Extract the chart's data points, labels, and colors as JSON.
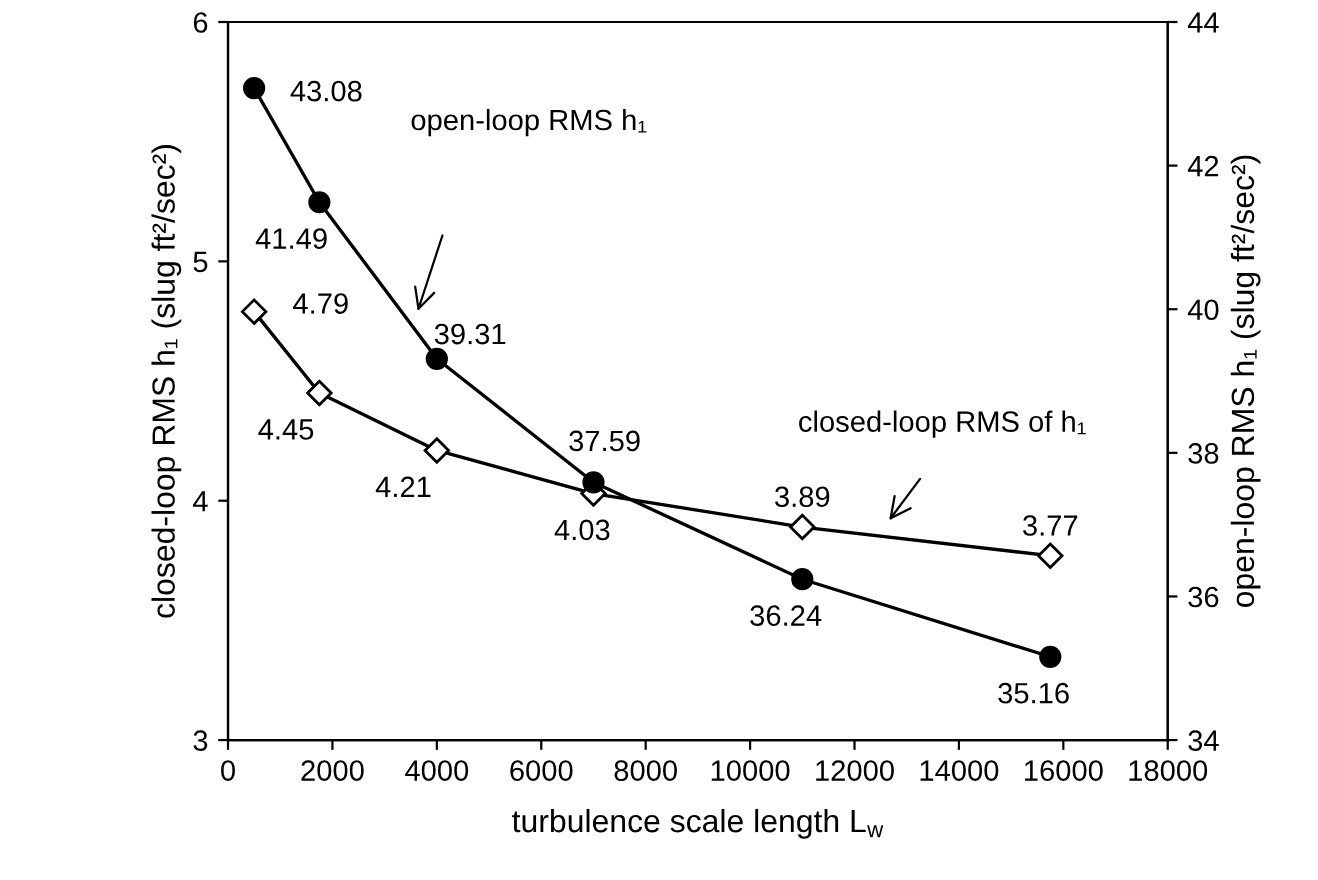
{
  "chart_data": {
    "type": "line",
    "xlabel": "turbulence scale length L$_{w}$",
    "ylabel": "closed-loop RMS h₁ (slug ft²/sec²)",
    "y2label": "open-loop RMS h₁ (slug ft²/sec²)",
    "x": [
      500,
      1750,
      4000,
      7000,
      11000,
      15750
    ],
    "series": [
      {
        "color": "#000000",
        "values": [
          4.79,
          4.45,
          4.21,
          4.03,
          3.89,
          3.77
        ],
        "marker": "diamond"
      },
      {
        "color": "#000000",
        "values": [
          43.08,
          41.49,
          39.31,
          37.59,
          36.24,
          35.16
        ],
        "marker": "circle",
        "axis": "y2"
      }
    ],
    "xlim": [
      0,
      18000
    ],
    "xticks": [
      0,
      2000,
      4000,
      6000,
      8000,
      10000,
      12000,
      14000,
      16000,
      18000
    ],
    "ylim": [
      3,
      6
    ],
    "yticks": [
      3,
      4,
      5,
      6
    ],
    "y2lim": [
      34,
      44
    ],
    "y2ticks": [
      34,
      36,
      38,
      40,
      42,
      44
    ],
    "data_labels": true,
    "grid": false,
    "legend": false,
    "annotations": [
      "open-loop RMS h₁",
      "closed-loop RMS of h₁"
    ]
  }
}
